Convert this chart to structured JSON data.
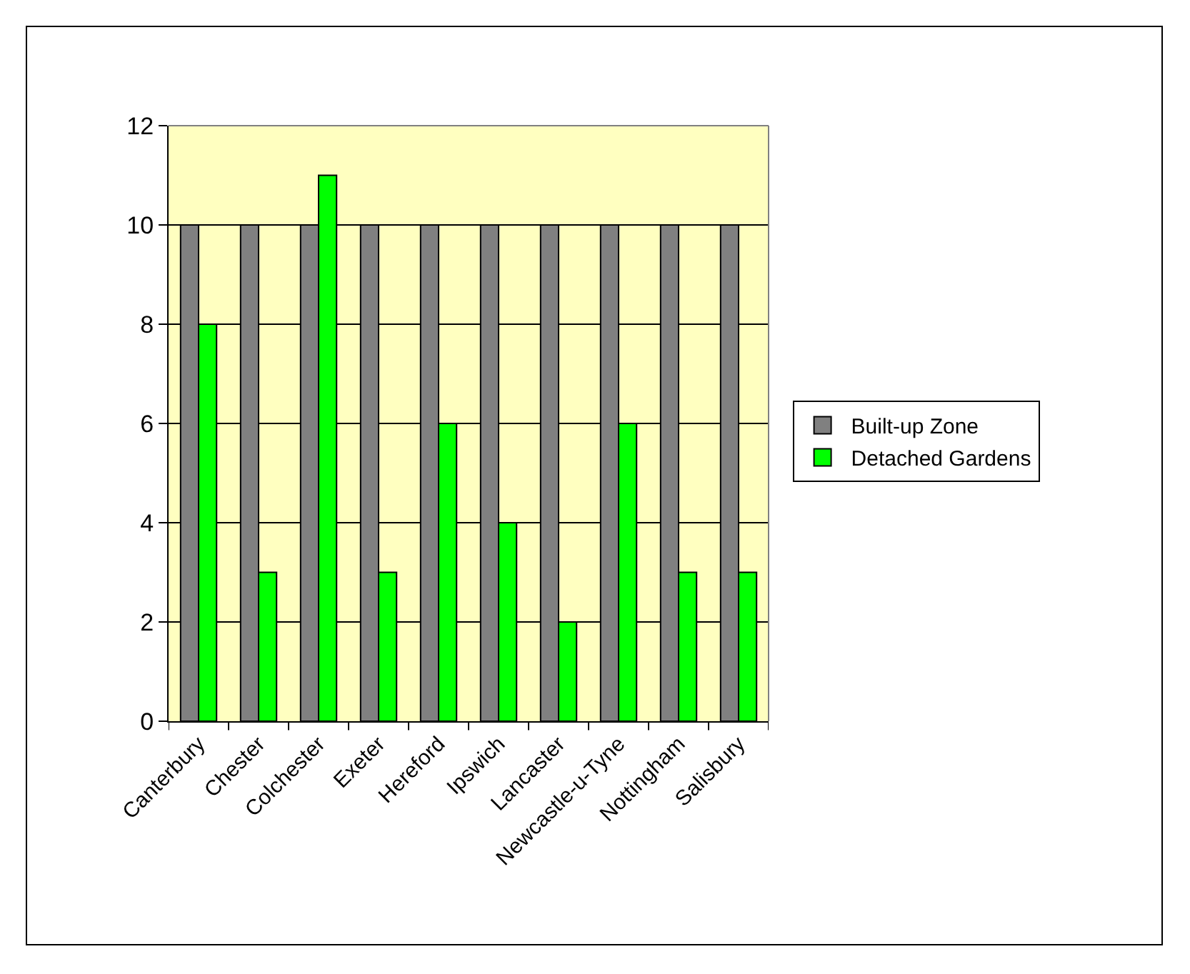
{
  "chart_data": {
    "type": "bar",
    "categories": [
      "Canterbury",
      "Chester",
      "Colchester",
      "Exeter",
      "Hereford",
      "Ipswich",
      "Lancaster",
      "Newcastle-u-Tyne",
      "Nottingham",
      "Salisbury"
    ],
    "series": [
      {
        "name": "Built-up Zone",
        "color": "#808080",
        "values": [
          10,
          10,
          10,
          10,
          10,
          10,
          10,
          10,
          10,
          10
        ]
      },
      {
        "name": "Detached Gardens",
        "color": "#00ff00",
        "values": [
          8,
          3,
          11,
          3,
          6,
          4,
          2,
          6,
          3,
          3
        ]
      }
    ],
    "ylim": [
      0,
      12
    ],
    "yticks": [
      0,
      2,
      4,
      6,
      8,
      10,
      12
    ],
    "grid": "y",
    "legend": "right"
  }
}
